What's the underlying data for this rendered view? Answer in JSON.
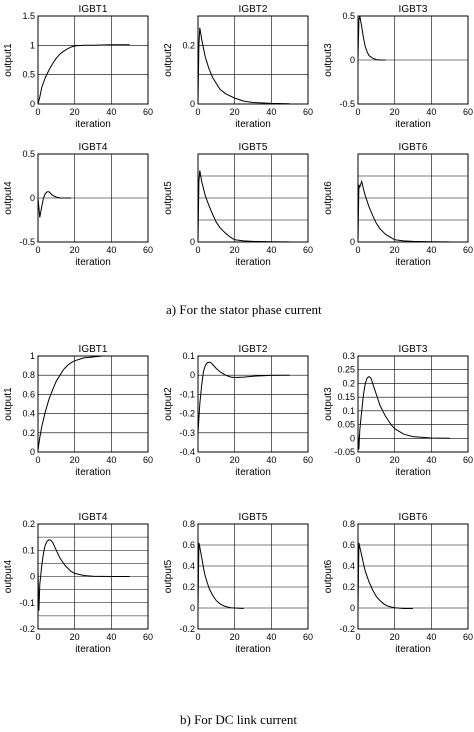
{
  "captions": {
    "a": "a)    For the stator phase current",
    "b": "b)    For DC link current"
  },
  "chart_data": [
    {
      "type": "line",
      "group": "a",
      "title": "IGBT1",
      "xlabel": "iteration",
      "ylabel": "output1",
      "xlim": [
        0,
        60
      ],
      "ylim": [
        0,
        1.5
      ],
      "xticks": [
        0,
        20,
        40,
        60
      ],
      "yticks": [
        0,
        0.5,
        1,
        1.5
      ],
      "ytick_labels": [
        "0",
        "0.5",
        "1",
        "1.5"
      ],
      "grid": true,
      "series": [
        {
          "x": [
            0,
            1,
            2,
            4,
            6,
            8,
            10,
            12,
            14,
            16,
            18,
            20,
            25,
            30,
            40,
            50
          ],
          "y": [
            0,
            0.12,
            0.28,
            0.45,
            0.58,
            0.69,
            0.78,
            0.85,
            0.9,
            0.94,
            0.97,
            0.99,
            1.0,
            1.0,
            1.01,
            1.01
          ]
        }
      ]
    },
    {
      "type": "line",
      "group": "a",
      "title": "IGBT2",
      "xlabel": "iteration",
      "ylabel": "output2",
      "xlim": [
        0,
        60
      ],
      "ylim": [
        0,
        0.3
      ],
      "xticks": [
        0,
        20,
        40,
        60
      ],
      "yticks": [
        0,
        0.1,
        0.2,
        0.3
      ],
      "ytick_labels": [
        "0",
        "",
        "0.2",
        ""
      ],
      "grid": true,
      "series": [
        {
          "x": [
            0,
            0.5,
            1,
            2,
            4,
            6,
            8,
            10,
            12,
            15,
            20,
            25,
            30,
            40,
            50
          ],
          "y": [
            0,
            0.2,
            0.26,
            0.22,
            0.16,
            0.12,
            0.09,
            0.07,
            0.05,
            0.035,
            0.02,
            0.01,
            0.005,
            0.002,
            0.001
          ]
        }
      ]
    },
    {
      "type": "line",
      "group": "a",
      "title": "IGBT3",
      "xlabel": "iteration",
      "ylabel": "output3",
      "xlim": [
        0,
        60
      ],
      "ylim": [
        -0.5,
        0.5
      ],
      "xticks": [
        0,
        20,
        40,
        60
      ],
      "yticks": [
        -0.5,
        0,
        0.5
      ],
      "ytick_labels": [
        "-0.5",
        "0",
        "0.5"
      ],
      "grid": true,
      "series": [
        {
          "x": [
            0,
            0.5,
            1,
            2,
            3,
            4,
            5,
            6,
            8,
            10,
            12,
            15
          ],
          "y": [
            0,
            0.45,
            0.5,
            0.38,
            0.25,
            0.15,
            0.09,
            0.05,
            0.02,
            0.005,
            0,
            0
          ]
        }
      ]
    },
    {
      "type": "line",
      "group": "a",
      "title": "IGBT4",
      "xlabel": "iteration",
      "ylabel": "output4",
      "xlim": [
        0,
        60
      ],
      "ylim": [
        -0.5,
        0.5
      ],
      "xticks": [
        0,
        20,
        40,
        60
      ],
      "yticks": [
        -0.5,
        0,
        0.5
      ],
      "ytick_labels": [
        "-0.5",
        "0",
        "0.5"
      ],
      "grid": true,
      "series": [
        {
          "x": [
            0,
            1,
            2,
            3,
            4,
            5,
            6,
            7,
            8,
            10,
            12,
            15,
            18
          ],
          "y": [
            0,
            -0.22,
            -0.1,
            0,
            0.05,
            0.07,
            0.07,
            0.05,
            0.03,
            0.01,
            0,
            0,
            0
          ]
        }
      ]
    },
    {
      "type": "line",
      "group": "a",
      "title": "IGBT5",
      "xlabel": "iteration",
      "ylabel": "output5",
      "xlim": [
        0,
        60
      ],
      "ylim": [
        0,
        0.8
      ],
      "xticks": [
        0,
        20,
        40,
        60
      ],
      "yticks": [
        0,
        0.2,
        0.4,
        0.6,
        0.8
      ],
      "ytick_labels": [
        "0",
        "",
        "",
        "",
        ""
      ],
      "grid": true,
      "series": [
        {
          "x": [
            0,
            0.5,
            1,
            2,
            4,
            6,
            8,
            10,
            12,
            15,
            18,
            20,
            25,
            30,
            40,
            50
          ],
          "y": [
            0,
            0.55,
            0.65,
            0.55,
            0.42,
            0.33,
            0.25,
            0.18,
            0.13,
            0.08,
            0.04,
            0.02,
            0.01,
            0.005,
            0.002,
            0.001
          ]
        }
      ]
    },
    {
      "type": "line",
      "group": "a",
      "title": "IGBT6",
      "xlabel": "iteration",
      "ylabel": "output6",
      "xlim": [
        0,
        60
      ],
      "ylim": [
        0,
        0.8
      ],
      "xticks": [
        0,
        20,
        40,
        60
      ],
      "yticks": [
        0,
        0.2,
        0.4,
        0.6,
        0.8
      ],
      "ytick_labels": [
        "0",
        "",
        "",
        "",
        ""
      ],
      "grid": true,
      "series": [
        {
          "x": [
            0,
            0.5,
            1,
            2,
            3,
            4,
            6,
            8,
            10,
            12,
            15,
            18,
            20,
            25,
            30,
            40,
            50
          ],
          "y": [
            0,
            0.52,
            0.5,
            0.55,
            0.48,
            0.42,
            0.32,
            0.24,
            0.17,
            0.12,
            0.07,
            0.04,
            0.02,
            0.01,
            0.005,
            0.002,
            0.001
          ]
        }
      ]
    },
    {
      "type": "line",
      "group": "b",
      "title": "IGBT1",
      "xlabel": "iteration",
      "ylabel": "output1",
      "xlim": [
        0,
        60
      ],
      "ylim": [
        0,
        1
      ],
      "xticks": [
        0,
        20,
        40,
        60
      ],
      "yticks": [
        0,
        0.2,
        0.4,
        0.6,
        0.8,
        1
      ],
      "ytick_labels": [
        "0",
        "0.2",
        "0.4",
        "0.6",
        "0.8",
        "1"
      ],
      "grid": true,
      "series": [
        {
          "x": [
            0,
            1,
            2,
            4,
            6,
            8,
            10,
            12,
            14,
            16,
            18,
            20,
            25,
            30,
            35,
            40
          ],
          "y": [
            0.02,
            0.15,
            0.26,
            0.42,
            0.55,
            0.65,
            0.74,
            0.8,
            0.86,
            0.9,
            0.93,
            0.95,
            0.98,
            0.99,
            1.0,
            1.0
          ]
        }
      ]
    },
    {
      "type": "line",
      "group": "b",
      "title": "IGBT2",
      "xlabel": "iteration",
      "ylabel": "output2",
      "xlim": [
        0,
        60
      ],
      "ylim": [
        -0.4,
        0.1
      ],
      "xticks": [
        0,
        20,
        40,
        60
      ],
      "yticks": [
        -0.4,
        -0.3,
        -0.2,
        -0.1,
        0,
        0.1
      ],
      "ytick_labels": [
        "-0.4",
        "-0.3",
        "-0.2",
        "-0.1",
        "0",
        "0.1"
      ],
      "grid": true,
      "series": [
        {
          "x": [
            0,
            1,
            2,
            3,
            4,
            5,
            6,
            7,
            8,
            10,
            12,
            15,
            18,
            20,
            25,
            30,
            40,
            50
          ],
          "y": [
            -0.3,
            -0.15,
            -0.05,
            0.02,
            0.05,
            0.065,
            0.068,
            0.065,
            0.055,
            0.035,
            0.018,
            0.0,
            -0.01,
            -0.012,
            -0.01,
            -0.005,
            -0.001,
            0
          ]
        }
      ]
    },
    {
      "type": "line",
      "group": "b",
      "title": "IGBT3",
      "xlabel": "iteration",
      "ylabel": "output3",
      "xlim": [
        0,
        60
      ],
      "ylim": [
        -0.05,
        0.3
      ],
      "xticks": [
        0,
        20,
        40,
        60
      ],
      "yticks": [
        -0.05,
        0,
        0.05,
        0.1,
        0.15,
        0.2,
        0.25,
        0.3
      ],
      "ytick_labels": [
        "-0.05",
        "0",
        "0.05",
        "0.1",
        "0.15",
        "0.2",
        "0.25",
        "0.3"
      ],
      "grid": true,
      "series": [
        {
          "x": [
            0,
            0.5,
            1,
            2,
            3,
            4,
            5,
            6,
            7,
            8,
            10,
            12,
            15,
            18,
            20,
            25,
            30,
            40,
            50
          ],
          "y": [
            0.02,
            -0.04,
            0.03,
            0.1,
            0.16,
            0.2,
            0.22,
            0.225,
            0.22,
            0.2,
            0.16,
            0.12,
            0.08,
            0.05,
            0.035,
            0.015,
            0.006,
            0.001,
            0
          ]
        }
      ]
    },
    {
      "type": "line",
      "group": "b",
      "title": "IGBT4",
      "xlabel": "iteration",
      "ylabel": "output4",
      "xlim": [
        0,
        60
      ],
      "ylim": [
        -0.2,
        0.2
      ],
      "xticks": [
        0,
        20,
        40,
        60
      ],
      "yticks": [
        -0.2,
        -0.15,
        -0.1,
        -0.05,
        0,
        0.05,
        0.1,
        0.15,
        0.2
      ],
      "ytick_labels": [
        "-0.2",
        "",
        "-0.1",
        "",
        "0",
        "",
        "0.1",
        "",
        "0.2"
      ],
      "grid": true,
      "series": [
        {
          "x": [
            0,
            0.5,
            1,
            2,
            3,
            4,
            5,
            6,
            7,
            8,
            10,
            12,
            15,
            18,
            20,
            25,
            30,
            40,
            50
          ],
          "y": [
            0.02,
            -0.13,
            -0.03,
            0.04,
            0.09,
            0.12,
            0.135,
            0.14,
            0.138,
            0.13,
            0.1,
            0.07,
            0.04,
            0.02,
            0.012,
            0.004,
            0.001,
            0,
            0
          ]
        }
      ]
    },
    {
      "type": "line",
      "group": "b",
      "title": "IGBT5",
      "xlabel": "iteration",
      "ylabel": "output5",
      "xlim": [
        0,
        60
      ],
      "ylim": [
        -0.2,
        0.8
      ],
      "xticks": [
        0,
        20,
        40,
        60
      ],
      "yticks": [
        -0.2,
        0,
        0.2,
        0.4,
        0.6,
        0.8
      ],
      "ytick_labels": [
        "-0.2",
        "0",
        "0.2",
        "0.4",
        "0.6",
        "0.8"
      ],
      "grid": true,
      "series": [
        {
          "x": [
            0,
            0.5,
            1,
            2,
            3,
            4,
            6,
            8,
            10,
            12,
            14,
            16,
            18,
            20,
            25
          ],
          "y": [
            0,
            0.62,
            0.58,
            0.48,
            0.38,
            0.3,
            0.19,
            0.12,
            0.07,
            0.04,
            0.02,
            0.01,
            0.003,
            0,
            -0.005
          ]
        }
      ]
    },
    {
      "type": "line",
      "group": "b",
      "title": "IGBT6",
      "xlabel": "iteration",
      "ylabel": "output6",
      "xlim": [
        0,
        60
      ],
      "ylim": [
        -0.2,
        0.8
      ],
      "xticks": [
        0,
        20,
        40,
        60
      ],
      "yticks": [
        -0.2,
        0,
        0.2,
        0.4,
        0.6,
        0.8
      ],
      "ytick_labels": [
        "-0.2",
        "0",
        "0.2",
        "0.4",
        "0.6",
        "0.8"
      ],
      "grid": true,
      "series": [
        {
          "x": [
            0,
            0.5,
            1,
            2,
            3,
            4,
            6,
            8,
            10,
            12,
            14,
            16,
            18,
            20,
            25,
            30
          ],
          "y": [
            0,
            0.62,
            0.58,
            0.5,
            0.42,
            0.35,
            0.25,
            0.17,
            0.11,
            0.07,
            0.04,
            0.02,
            0.01,
            0.003,
            -0.005,
            -0.005
          ]
        }
      ]
    }
  ]
}
